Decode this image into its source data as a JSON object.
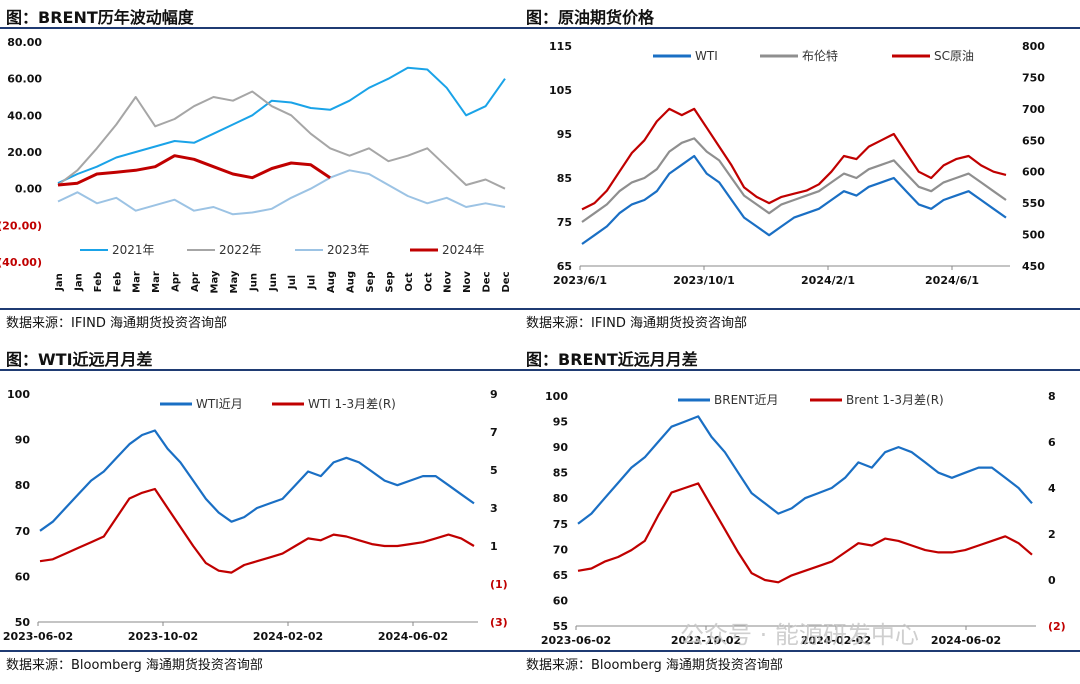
{
  "panels": [
    {
      "title": "图：BRENT历年波动幅度",
      "source": "数据来源：IFIND    海通期货投资咨询部"
    },
    {
      "title": "图：原油期货价格",
      "source": "数据来源：IFIND    海通期货投资咨询部"
    },
    {
      "title": "图：WTI近远月月差",
      "source": "数据来源：Bloomberg    海通期货投资咨询部"
    },
    {
      "title": "图：BRENT近远月月差",
      "source": "数据来源：Bloomberg    海通期货投资咨询部"
    }
  ],
  "watermark": "公众号 · 能源研发中心",
  "chart_data": [
    {
      "type": "line",
      "title": "图：BRENT历年波动幅度",
      "categories": [
        "Jan",
        "Jan",
        "Feb",
        "Feb",
        "Mar",
        "Mar",
        "Apr",
        "Apr",
        "May",
        "May",
        "Jun",
        "Jun",
        "Jul",
        "Jul",
        "Aug",
        "Aug",
        "Sep",
        "Sep",
        "Oct",
        "Oct",
        "Nov",
        "Nov",
        "Dec",
        "Dec"
      ],
      "y_ticks": [
        "80.00",
        "60.00",
        "40.00",
        "20.00",
        "0.00",
        "(20.00)",
        "(40.00)"
      ],
      "ylim": [
        -40,
        80
      ],
      "series": [
        {
          "name": "2021年",
          "color": "#1aa3e8",
          "values": [
            3,
            8,
            12,
            17,
            20,
            23,
            26,
            25,
            30,
            35,
            40,
            48,
            47,
            44,
            43,
            48,
            55,
            60,
            66,
            65,
            55,
            40,
            45,
            60
          ]
        },
        {
          "name": "2022年",
          "color": "#a6a6a6",
          "values": [
            2,
            10,
            22,
            35,
            50,
            34,
            38,
            45,
            50,
            48,
            53,
            45,
            40,
            30,
            22,
            18,
            22,
            15,
            18,
            22,
            12,
            2,
            5,
            0
          ]
        },
        {
          "name": "2023年",
          "color": "#9cc3e4",
          "values": [
            -7,
            -2,
            -8,
            -5,
            -12,
            -9,
            -6,
            -12,
            -10,
            -14,
            -13,
            -11,
            -5,
            0,
            6,
            10,
            8,
            2,
            -4,
            -8,
            -5,
            -10,
            -8,
            -10
          ]
        },
        {
          "name": "2024年",
          "color": "#c00000",
          "values": [
            2,
            3,
            8,
            9,
            10,
            12,
            18,
            16,
            12,
            8,
            6,
            11,
            14,
            13,
            6,
            null,
            null,
            null,
            null,
            null,
            null,
            null,
            null,
            null
          ]
        }
      ]
    },
    {
      "type": "line",
      "title": "图：原油期货价格",
      "x_ticks": [
        "2023/6/1",
        "2023/10/1",
        "2024/2/1",
        "2024/6/1"
      ],
      "left_ticks": [
        "115",
        "105",
        "95",
        "85",
        "75",
        "65"
      ],
      "right_ticks": [
        "800",
        "750",
        "700",
        "650",
        "600",
        "550",
        "500",
        "450"
      ],
      "ylim_left": [
        65,
        115
      ],
      "ylim_right": [
        450,
        800
      ],
      "series": [
        {
          "name": "WTI",
          "axis": "left",
          "color": "#1a6fc4",
          "values": [
            70,
            72,
            74,
            77,
            79,
            80,
            82,
            86,
            88,
            90,
            86,
            84,
            80,
            76,
            74,
            72,
            74,
            76,
            77,
            78,
            80,
            82,
            81,
            83,
            84,
            85,
            82,
            79,
            78,
            80,
            81,
            82,
            80,
            78,
            76
          ]
        },
        {
          "name": "布伦特",
          "axis": "left",
          "color": "#8f8f8f",
          "values": [
            75,
            77,
            79,
            82,
            84,
            85,
            87,
            91,
            93,
            94,
            91,
            89,
            85,
            81,
            79,
            77,
            79,
            80,
            81,
            82,
            84,
            86,
            85,
            87,
            88,
            89,
            86,
            83,
            82,
            84,
            85,
            86,
            84,
            82,
            80
          ]
        },
        {
          "name": "SC原油",
          "axis": "right",
          "color": "#c00000",
          "values": [
            540,
            550,
            570,
            600,
            630,
            650,
            680,
            700,
            690,
            700,
            670,
            640,
            610,
            575,
            560,
            550,
            560,
            565,
            570,
            580,
            600,
            625,
            620,
            640,
            650,
            660,
            630,
            600,
            590,
            610,
            620,
            625,
            610,
            600,
            595
          ]
        }
      ]
    },
    {
      "type": "line",
      "title": "图：WTI近远月月差",
      "x_ticks": [
        "2023-06-02",
        "2023-10-02",
        "2024-02-02",
        "2024-06-02"
      ],
      "left_ticks": [
        "100",
        "90",
        "80",
        "70",
        "60",
        "50"
      ],
      "right_ticks": [
        "9",
        "7",
        "5",
        "3",
        "1",
        "(1)",
        "(3)"
      ],
      "ylim_left": [
        50,
        100
      ],
      "ylim_right": [
        -3,
        9
      ],
      "series": [
        {
          "name": "WTI近月",
          "axis": "left",
          "color": "#1a6fc4",
          "values": [
            70,
            72,
            75,
            78,
            81,
            83,
            86,
            89,
            91,
            92,
            88,
            85,
            81,
            77,
            74,
            72,
            73,
            75,
            76,
            77,
            80,
            83,
            82,
            85,
            86,
            85,
            83,
            81,
            80,
            81,
            82,
            82,
            80,
            78,
            76
          ]
        },
        {
          "name": "WTI 1-3月差(R)",
          "axis": "right",
          "color": "#c00000",
          "values": [
            0.2,
            0.3,
            0.6,
            0.9,
            1.2,
            1.5,
            2.5,
            3.5,
            3.8,
            4.0,
            3.0,
            2.0,
            1.0,
            0.1,
            -0.3,
            -0.4,
            0.0,
            0.2,
            0.4,
            0.6,
            1.0,
            1.4,
            1.3,
            1.6,
            1.5,
            1.3,
            1.1,
            1.0,
            1.0,
            1.1,
            1.2,
            1.4,
            1.6,
            1.4,
            1.0
          ]
        }
      ]
    },
    {
      "type": "line",
      "title": "图：BRENT近远月月差",
      "x_ticks": [
        "2023-06-02",
        "2023-10-02",
        "2024-02-02",
        "2024-06-02"
      ],
      "left_ticks": [
        "100",
        "95",
        "90",
        "85",
        "80",
        "75",
        "70",
        "65",
        "60",
        "55"
      ],
      "right_ticks": [
        "8",
        "6",
        "4",
        "2",
        "0",
        "(2)"
      ],
      "ylim_left": [
        55,
        100
      ],
      "ylim_right": [
        -2,
        8
      ],
      "series": [
        {
          "name": "BRENT近月",
          "axis": "left",
          "color": "#1a6fc4",
          "values": [
            75,
            77,
            80,
            83,
            86,
            88,
            91,
            94,
            95,
            96,
            92,
            89,
            85,
            81,
            79,
            77,
            78,
            80,
            81,
            82,
            84,
            87,
            86,
            89,
            90,
            89,
            87,
            85,
            84,
            85,
            86,
            86,
            84,
            82,
            79
          ]
        },
        {
          "name": "Brent 1-3月差(R)",
          "axis": "right",
          "color": "#c00000",
          "values": [
            0.4,
            0.5,
            0.8,
            1.0,
            1.3,
            1.7,
            2.8,
            3.8,
            4.0,
            4.2,
            3.2,
            2.2,
            1.2,
            0.3,
            0.0,
            -0.1,
            0.2,
            0.4,
            0.6,
            0.8,
            1.2,
            1.6,
            1.5,
            1.8,
            1.7,
            1.5,
            1.3,
            1.2,
            1.2,
            1.3,
            1.5,
            1.7,
            1.9,
            1.6,
            1.1
          ]
        }
      ]
    }
  ]
}
